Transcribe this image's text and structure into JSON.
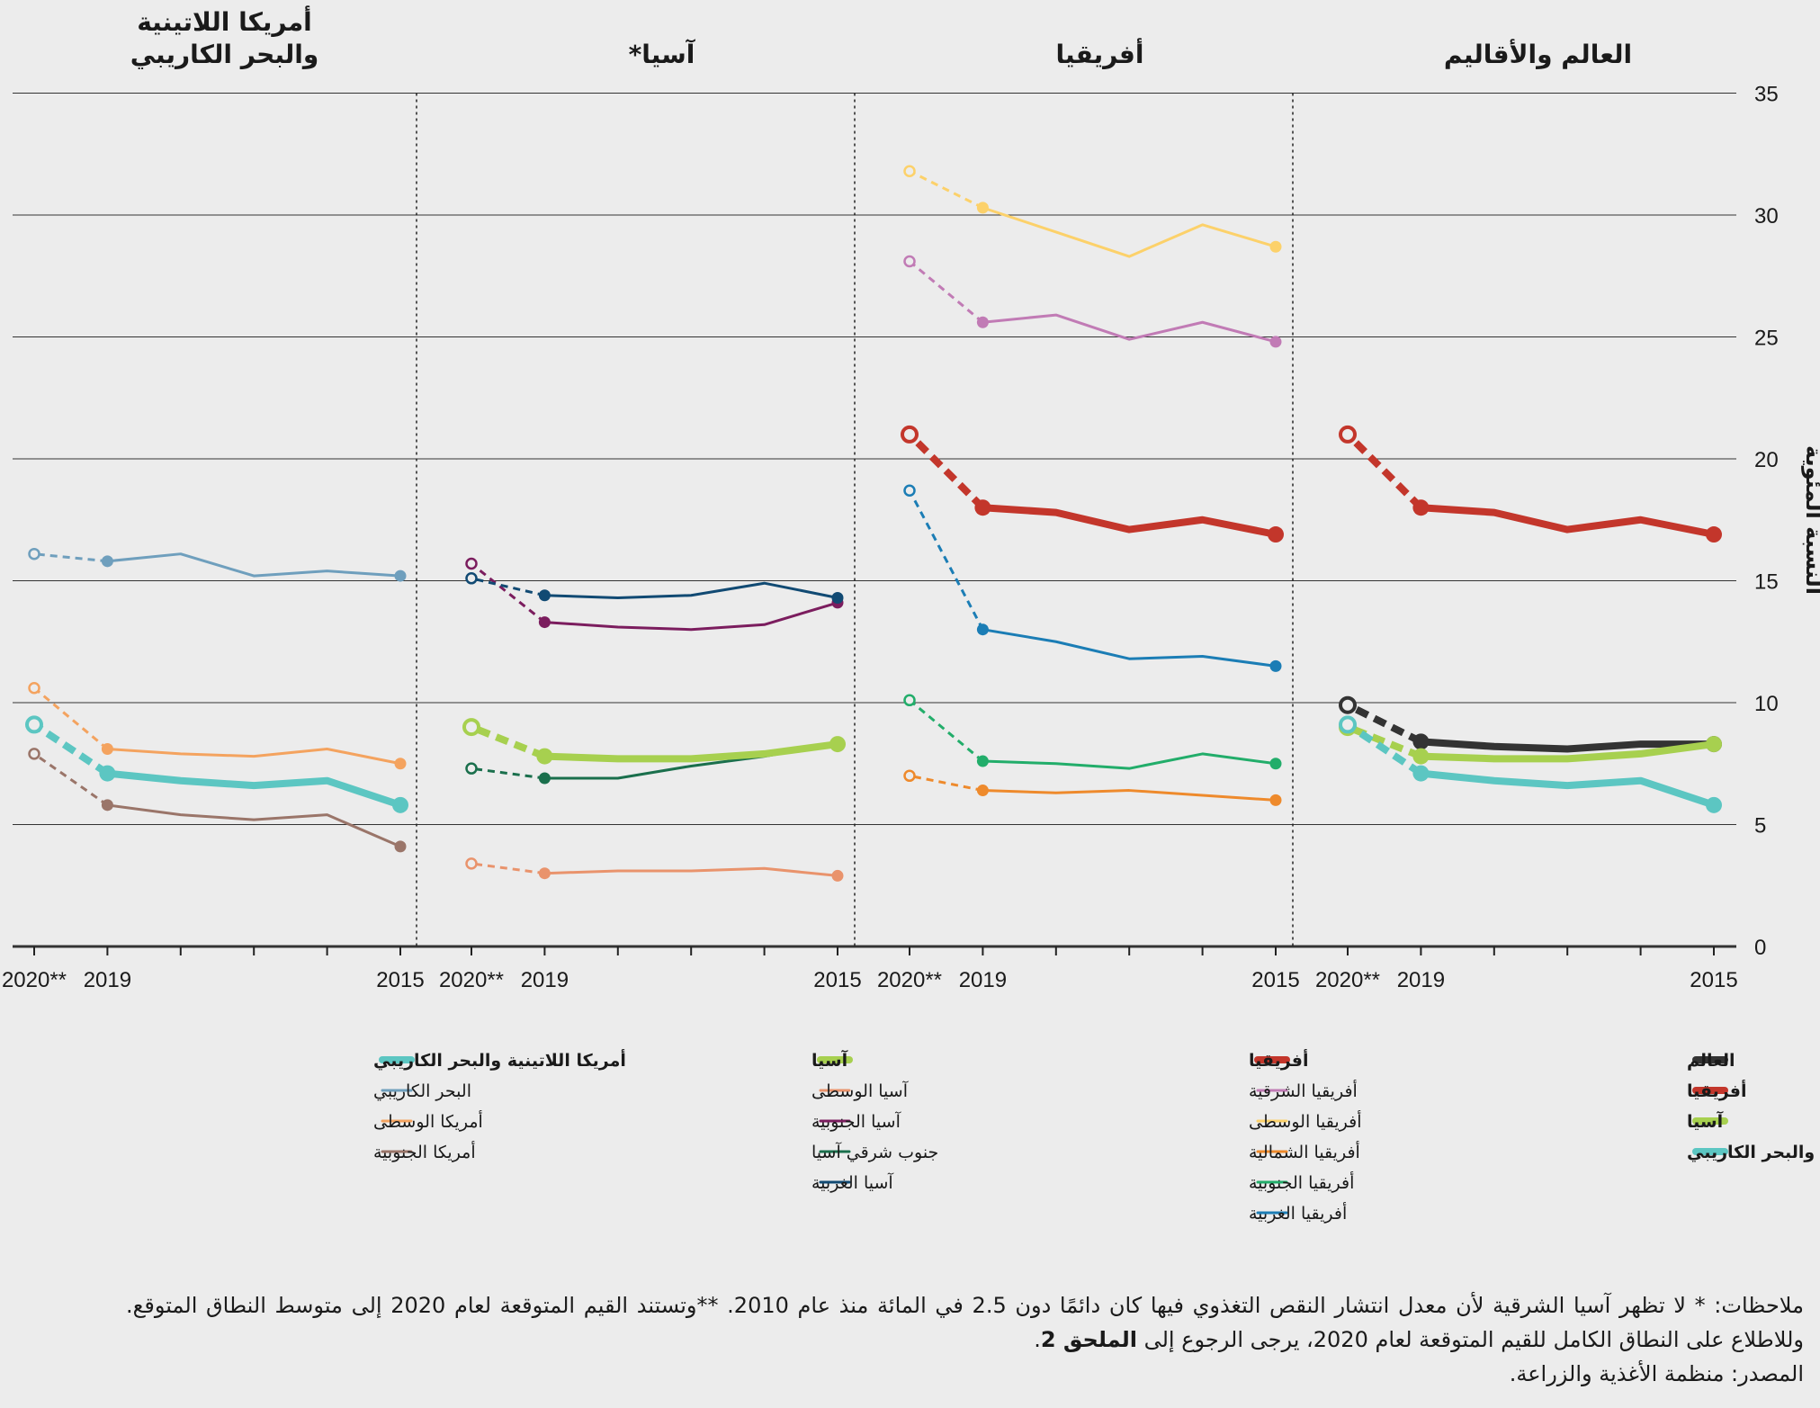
{
  "chart_data": {
    "type": "line",
    "ylabel": "النسبة المئوية",
    "ylim": [
      0,
      35
    ],
    "yticks": [
      0,
      5,
      10,
      15,
      20,
      25,
      30,
      35
    ],
    "x": [
      2015,
      2016,
      2017,
      2018,
      2019,
      2020
    ],
    "xtick_labels": [
      "2015",
      "2019",
      "2020**"
    ],
    "projected_segment": [
      2019,
      2020
    ],
    "panels": [
      {
        "title": "العالم والأقاليم",
        "series": [
          {
            "name": "العالم",
            "color": "#333333",
            "weight": "heavy",
            "values": [
              8.3,
              8.3,
              8.1,
              8.2,
              8.4,
              9.9
            ]
          },
          {
            "name": "أفريقيا",
            "color": "#c3362b",
            "weight": "heavy",
            "values": [
              16.9,
              17.5,
              17.1,
              17.8,
              18.0,
              21.0
            ]
          },
          {
            "name": "آسيا",
            "color": "#a7d04f",
            "weight": "heavy",
            "values": [
              8.3,
              7.9,
              7.7,
              7.7,
              7.8,
              9.0
            ]
          },
          {
            "name": "أمريكا اللاتينية والبحر الكاريبي",
            "color": "#5cc6c2",
            "weight": "heavy",
            "values": [
              5.8,
              6.8,
              6.6,
              6.8,
              7.1,
              9.1
            ]
          }
        ]
      },
      {
        "title": "أفريقيا",
        "series": [
          {
            "name": "أفريقيا",
            "color": "#c3362b",
            "weight": "heavy",
            "values": [
              16.9,
              17.5,
              17.1,
              17.8,
              18.0,
              21.0
            ]
          },
          {
            "name": "أفريقيا الشرقية",
            "color": "#c17bb5",
            "weight": "light",
            "values": [
              24.8,
              25.6,
              24.9,
              25.9,
              25.6,
              28.1
            ]
          },
          {
            "name": "أفريقيا الوسطى",
            "color": "#fcd16a",
            "weight": "light",
            "values": [
              28.7,
              29.6,
              28.3,
              29.3,
              30.3,
              31.8
            ]
          },
          {
            "name": "أفريقيا الشمالية",
            "color": "#ee8a2c",
            "weight": "light",
            "values": [
              6.0,
              6.2,
              6.4,
              6.3,
              6.4,
              7.0
            ]
          },
          {
            "name": "أفريقيا الجنوبية",
            "color": "#22ad6a",
            "weight": "light",
            "values": [
              7.5,
              7.9,
              7.3,
              7.5,
              7.6,
              10.1
            ]
          },
          {
            "name": "أفريقيا الغربية",
            "color": "#1b7db5",
            "weight": "light",
            "values": [
              11.5,
              11.9,
              11.8,
              12.5,
              13.0,
              18.7
            ]
          }
        ]
      },
      {
        "title": "آسيا*",
        "series": [
          {
            "name": "آسيا",
            "color": "#a7d04f",
            "weight": "heavy",
            "values": [
              8.3,
              7.9,
              7.7,
              7.7,
              7.8,
              9.0
            ]
          },
          {
            "name": "آسيا الوسطى",
            "color": "#e9936c",
            "weight": "light",
            "values": [
              2.9,
              3.2,
              3.1,
              3.1,
              3.0,
              3.4
            ]
          },
          {
            "name": "آسيا الجنوبية",
            "color": "#7b1d5e",
            "weight": "light",
            "values": [
              14.1,
              13.2,
              13.0,
              13.1,
              13.3,
              15.7
            ]
          },
          {
            "name": "جنوب شرقي آسيا",
            "color": "#1a6f4c",
            "weight": "light",
            "values": [
              8.3,
              7.8,
              7.4,
              6.9,
              6.9,
              7.3
            ]
          },
          {
            "name": "آسيا الغربية",
            "color": "#114a73",
            "weight": "light",
            "values": [
              14.3,
              14.9,
              14.4,
              14.3,
              14.4,
              15.1
            ]
          }
        ]
      },
      {
        "title": "أمريكا اللاتينية والبحر الكاريبي",
        "series": [
          {
            "name": "أمريكا اللاتينية والبحر الكاريبي",
            "color": "#5cc6c2",
            "weight": "heavy",
            "values": [
              5.8,
              6.8,
              6.6,
              6.8,
              7.1,
              9.1
            ]
          },
          {
            "name": "البحر الكاريبي",
            "color": "#6f9fbd",
            "weight": "light",
            "values": [
              15.2,
              15.4,
              15.2,
              16.1,
              15.8,
              16.1
            ]
          },
          {
            "name": "أمريكا الوسطى",
            "color": "#f4a35f",
            "weight": "light",
            "values": [
              7.5,
              8.1,
              7.8,
              7.9,
              8.1,
              10.6
            ]
          },
          {
            "name": "أمريكا الجنوبية",
            "color": "#9a7569",
            "weight": "light",
            "values": [
              4.1,
              5.4,
              5.2,
              5.4,
              5.8,
              7.9
            ]
          }
        ]
      }
    ]
  },
  "notes": {
    "line1_prefix": "ملاحظات: * لا تظهر آسيا الشرقية لأن معدل انتشار النقص التغذوي فيها كان دائمًا دون 2.5 في المائة منذ عام 2010. **وتستند القيم المتوقعة لعام 2020 إلى متوسط النطاق المتوقع. وللاطلاع على النطاق الكامل للقيم المتوقعة لعام 2020، يرجى الرجوع إلى ",
    "annex": "الملحق 2",
    "line1_suffix": ".",
    "source": "المصدر: منظمة الأغذية والزراعة."
  }
}
